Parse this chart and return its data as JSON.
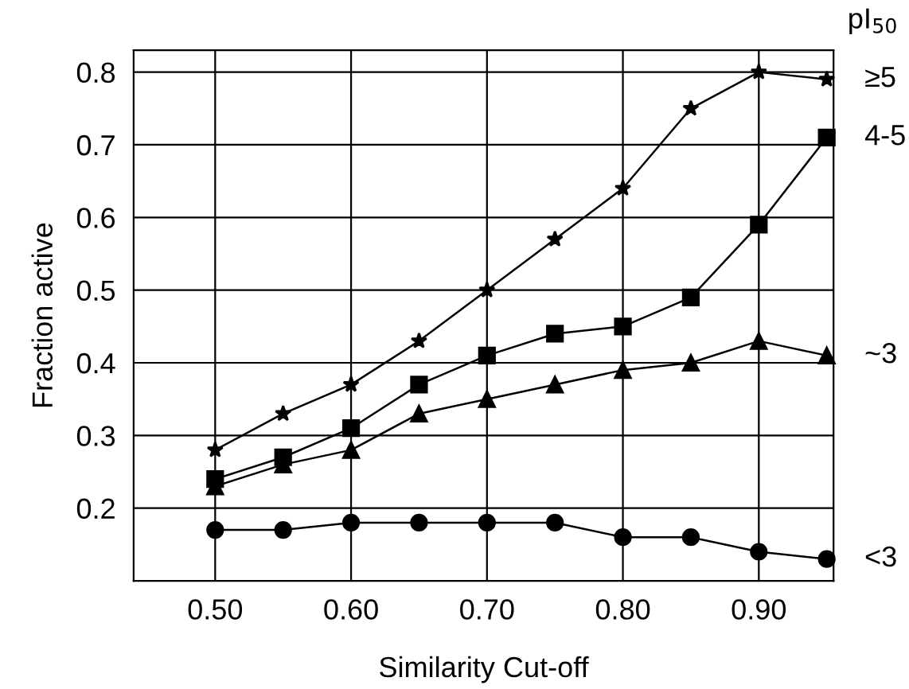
{
  "chart_data": {
    "type": "line",
    "xlabel": "Similarity Cut-off",
    "ylabel": "Fraction active",
    "legend_title": "pI$_{50}$",
    "x": [
      0.5,
      0.55,
      0.6,
      0.65,
      0.7,
      0.75,
      0.8,
      0.85,
      0.9,
      0.95
    ],
    "series": [
      {
        "name": "≥5",
        "color": "#000000",
        "marker": "star",
        "values": [
          0.28,
          0.33,
          0.37,
          0.43,
          0.5,
          0.57,
          0.64,
          0.75,
          0.8,
          0.79
        ]
      },
      {
        "name": "4-5",
        "color": "#000000",
        "marker": "square",
        "values": [
          0.24,
          0.27,
          0.31,
          0.37,
          0.41,
          0.44,
          0.45,
          0.49,
          0.59,
          0.71
        ]
      },
      {
        "name": "~3",
        "color": "#000000",
        "marker": "triangle",
        "values": [
          0.23,
          0.26,
          0.28,
          0.33,
          0.35,
          0.37,
          0.39,
          0.4,
          0.43,
          0.41
        ]
      },
      {
        "name": "<3",
        "color": "#000000",
        "marker": "circle",
        "values": [
          0.17,
          0.17,
          0.18,
          0.18,
          0.18,
          0.18,
          0.16,
          0.16,
          0.14,
          0.13
        ]
      }
    ],
    "xlim": [
      0.44,
      0.955
    ],
    "ylim": [
      0.1,
      0.83
    ],
    "xticks": [
      {
        "value": 0.5,
        "label": "0.50"
      },
      {
        "value": 0.6,
        "label": "0.60"
      },
      {
        "value": 0.7,
        "label": "0.70"
      },
      {
        "value": 0.8,
        "label": "0.80"
      },
      {
        "value": 0.9,
        "label": "0.90"
      }
    ],
    "yticks": [
      0.2,
      0.3,
      0.4,
      0.5,
      0.6,
      0.7,
      0.8
    ],
    "grid": true,
    "line_style": "solid"
  }
}
